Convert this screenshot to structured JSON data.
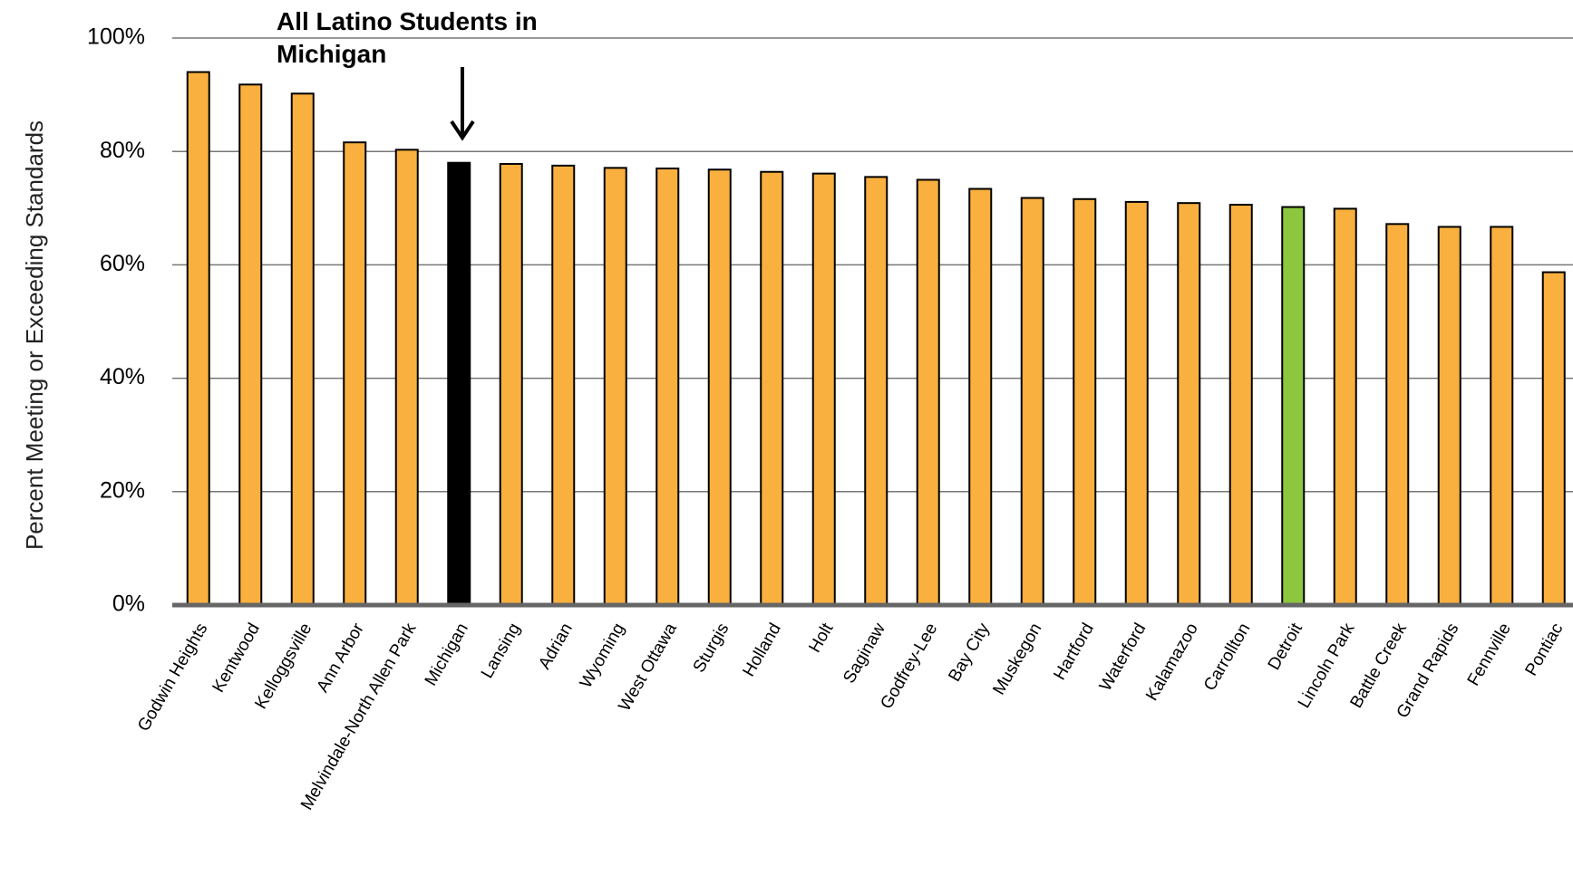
{
  "chart_data": {
    "type": "bar",
    "y_label": "Percent Meeting or Exceeding Standards",
    "annotation": "All Latino Students in Michigan",
    "categories": [
      "Godwin Heights",
      "Kentwood",
      "Kelloggsville",
      "Ann Arbor",
      "Melvindale-North Allen Park",
      "Michigan",
      "Lansing",
      "Adrian",
      "Wyoming",
      "West Ottawa",
      "Sturgis",
      "Holland",
      "Holt",
      "Saginaw",
      "Godfrey-Lee",
      "Bay City",
      "Muskegon",
      "Hartford",
      "Waterford",
      "Kalamazoo",
      "Carrollton",
      "Detroit",
      "Lincoln Park",
      "Battle Creek",
      "Grand Rapids",
      "Fennville",
      "Pontiac"
    ],
    "values": [
      94.0,
      91.8,
      90.2,
      81.6,
      80.3,
      78.0,
      77.8,
      77.5,
      77.1,
      77.0,
      76.8,
      76.4,
      76.1,
      75.5,
      75.0,
      73.4,
      71.8,
      71.6,
      71.1,
      70.9,
      70.6,
      70.2,
      69.9,
      67.2,
      66.7,
      66.7,
      58.7
    ],
    "colors": [
      "#F9B03F",
      "#F9B03F",
      "#F9B03F",
      "#F9B03F",
      "#F9B03F",
      "#000000",
      "#F9B03F",
      "#F9B03F",
      "#F9B03F",
      "#F9B03F",
      "#F9B03F",
      "#F9B03F",
      "#F9B03F",
      "#F9B03F",
      "#F9B03F",
      "#F9B03F",
      "#F9B03F",
      "#F9B03F",
      "#F9B03F",
      "#F9B03F",
      "#F9B03F",
      "#8DC63F",
      "#F9B03F",
      "#F9B03F",
      "#F9B03F",
      "#F9B03F",
      "#F9B03F"
    ],
    "ylim": [
      0,
      100
    ],
    "yticks": [
      {
        "value": 0,
        "label": "0%"
      },
      {
        "value": 20,
        "label": "20%"
      },
      {
        "value": 40,
        "label": "40%"
      },
      {
        "value": 60,
        "label": "60%"
      },
      {
        "value": 80,
        "label": "80%"
      },
      {
        "value": 100,
        "label": "100%"
      }
    ],
    "grid": true
  }
}
